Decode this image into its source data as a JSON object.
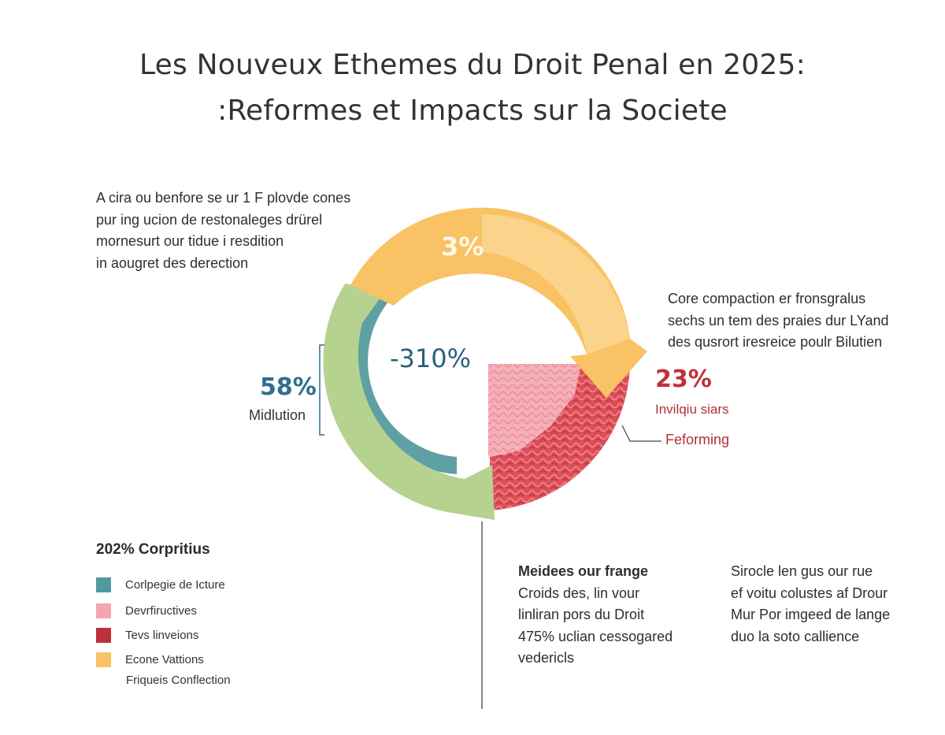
{
  "title_line1": "Les Nouveux Ethemes du Droit Penal en 2025:",
  "title_line2": ":Reformes et Impacts sur la Societe",
  "intro_lines": [
    "A cira ou benfore se ur 1 F plovde cones",
    "pur ing ucion de restonaleges drürel",
    "mornesurt our tidue i resdition",
    "in aougret des derection"
  ],
  "right_note_lines": [
    "Core compaction er fronsgralus",
    "sechs un tem des praies dur LYand",
    "des qusrort iresreice poulr Bilutien"
  ],
  "chart_data": {
    "type": "pie",
    "slices": [
      {
        "label": "3%",
        "color": "#f8c265",
        "description": "Econe Vattions"
      },
      {
        "label": "58%",
        "color": "#b5d38e",
        "description": "Midlution"
      },
      {
        "label": "-310%",
        "color": "#5fa0a5",
        "description": "Corlpegie de Icture"
      },
      {
        "label": "23%",
        "color": "#d9454f",
        "description": "Invilqiu siars"
      }
    ],
    "annotations": {
      "pct_58": "58%",
      "sub_58": "Midlution",
      "pct_23": "23%",
      "sub_23": "Invilqiu siars",
      "reforming": "Feforming",
      "pct_3": "3%",
      "center": "-310%"
    }
  },
  "legend": {
    "title": "202% Corpritius",
    "items": [
      {
        "label": "Corlpegie de Icture",
        "color": "#4f9aa1"
      },
      {
        "label": "Devrfiructives",
        "color": "#f2a7b0"
      },
      {
        "label": "Tevs linveions",
        "color": "#c0303a"
      },
      {
        "label": "Econe Vattions",
        "color": "#f8c265"
      }
    ],
    "extra": "Friqueis Conflection"
  },
  "meidees": {
    "head": "Meidees our frange",
    "lines": [
      "Croids des, lin vour",
      "linliran pors du Droit",
      "475% uclian cessogared",
      "vedericls"
    ]
  },
  "sirocle": {
    "lines": [
      "Sirocle len gus our rue",
      "ef voitu colustes af Drour",
      "Mur Por imgeed de lange",
      "duo la soto callience"
    ]
  }
}
